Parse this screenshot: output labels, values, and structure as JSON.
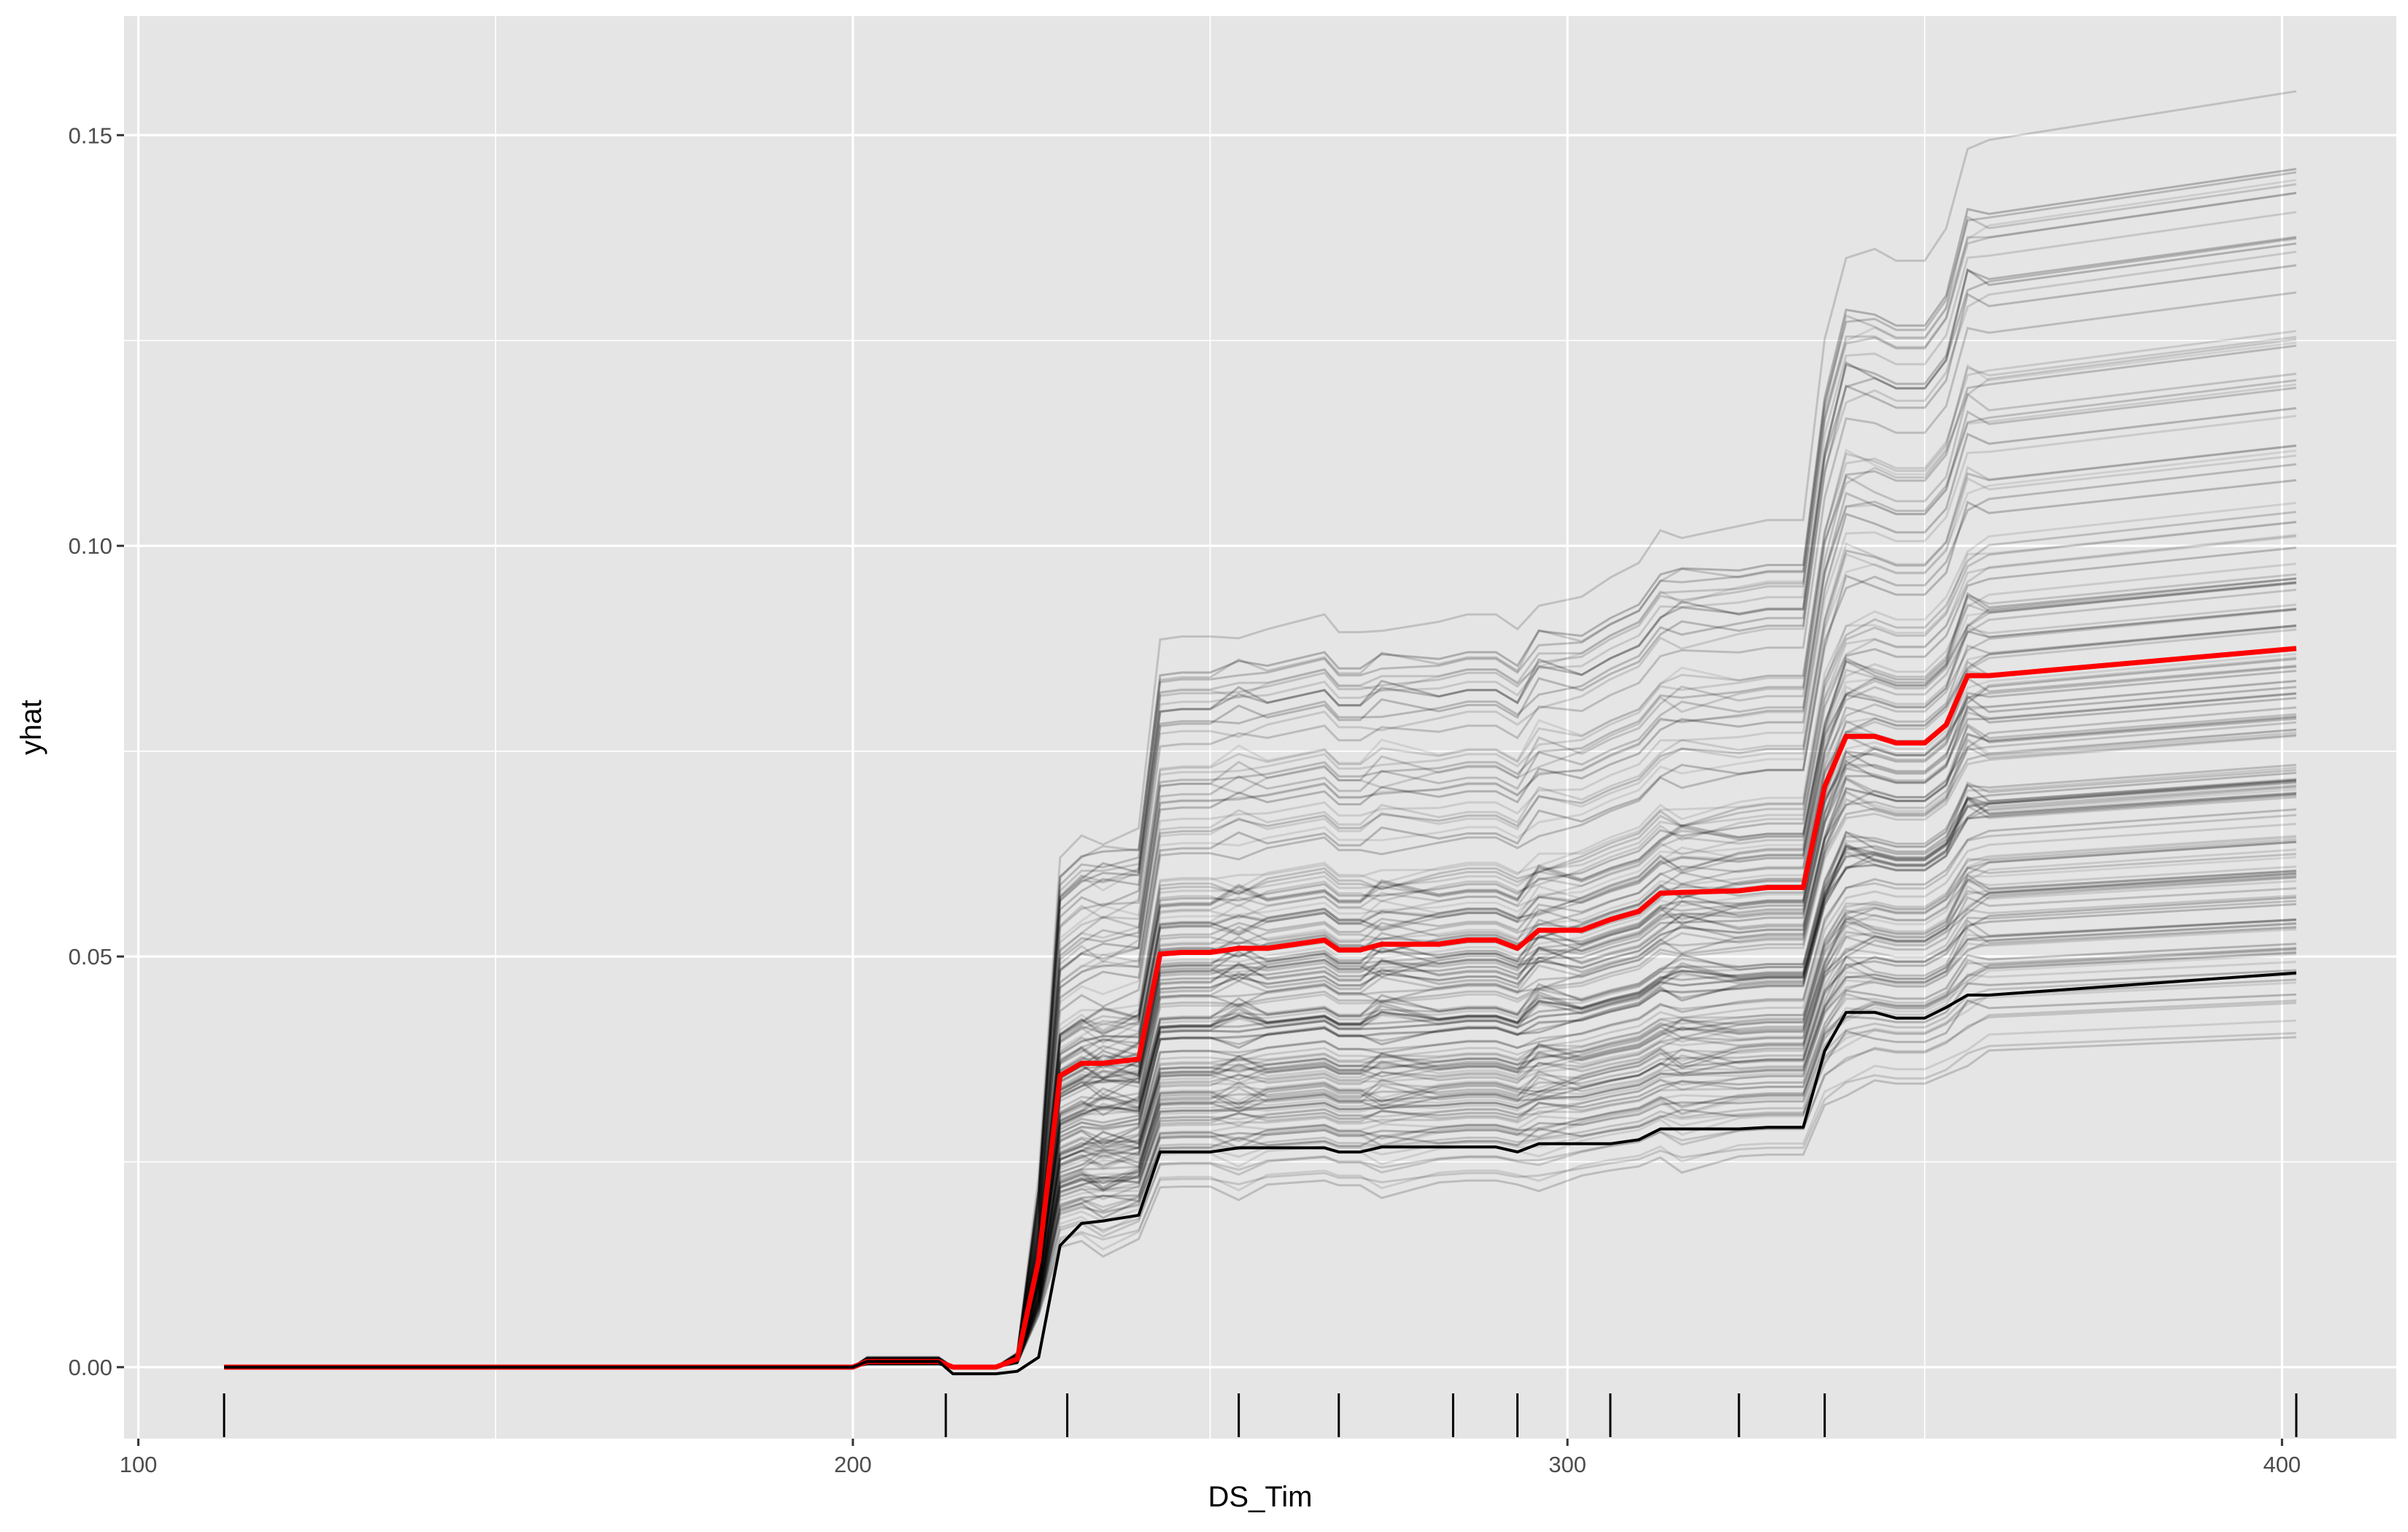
{
  "chart_data": {
    "type": "line",
    "title": "",
    "xlabel": "DS_Tim",
    "ylabel": "yhat",
    "xlim": [
      98,
      416
    ],
    "ylim": [
      -0.0087,
      0.1645
    ],
    "x_ticks": [
      100,
      200,
      300,
      400
    ],
    "x_tick_labels": [
      "100",
      "200",
      "300",
      "400"
    ],
    "y_ticks": [
      0.0,
      0.05,
      0.1,
      0.15
    ],
    "y_tick_labels": [
      "0.00",
      "0.05",
      "0.10",
      "0.15"
    ],
    "grid": true,
    "legend": "none",
    "colors": {
      "panel": "#e5e5e5",
      "grid": "#ffffff",
      "ice_lines": "#000000",
      "pd_line": "#ff0000"
    },
    "rug_x": [
      112,
      213,
      230,
      254,
      268,
      284,
      293,
      306,
      324,
      336,
      402
    ],
    "x": [
      112,
      200,
      202,
      212,
      214,
      220,
      223,
      226,
      229,
      232,
      235,
      240,
      243,
      246,
      250,
      254,
      258,
      266,
      268,
      271,
      274,
      282,
      286,
      290,
      293,
      296,
      302,
      306,
      310,
      313,
      316,
      324,
      328,
      333,
      336,
      339,
      343,
      346,
      350,
      353,
      356,
      359,
      402
    ],
    "profile_base": [
      0,
      0,
      0.0007,
      0.0007,
      0,
      0,
      0.001,
      0.013,
      0.0355,
      0.037,
      0.037,
      0.0375,
      0.0503,
      0.0505,
      0.0505,
      0.051,
      0.051,
      0.052,
      0.0508,
      0.0508,
      0.0515,
      0.0515,
      0.052,
      0.052,
      0.051,
      0.0532,
      0.0532,
      0.0545,
      0.0555,
      0.0577,
      0.0578,
      0.058,
      0.0584,
      0.0584,
      0.0707,
      0.0768,
      0.0768,
      0.076,
      0.076,
      0.0782,
      0.0842,
      0.0842,
      0.0875
    ],
    "series": [
      {
        "name": "",
        "role": "partial-dependence",
        "values": [
          0,
          0,
          0.0007,
          0.0007,
          0,
          0,
          0.001,
          0.013,
          0.0355,
          0.037,
          0.037,
          0.0375,
          0.0503,
          0.0505,
          0.0505,
          0.051,
          0.051,
          0.052,
          0.0508,
          0.0508,
          0.0515,
          0.0515,
          0.052,
          0.052,
          0.051,
          0.0532,
          0.0532,
          0.0545,
          0.0555,
          0.0577,
          0.0578,
          0.058,
          0.0584,
          0.0584,
          0.0707,
          0.0768,
          0.0768,
          0.076,
          0.076,
          0.0782,
          0.0842,
          0.0842,
          0.0875
        ]
      },
      {
        "name": "",
        "role": "highlighted-observation",
        "values": [
          0,
          0,
          0.0007,
          0.0007,
          -0.0008,
          -0.0008,
          -0.0005,
          0.0012,
          0.0148,
          0.0175,
          0.0178,
          0.0185,
          0.0262,
          0.0262,
          0.0262,
          0.0267,
          0.0267,
          0.0267,
          0.0262,
          0.0262,
          0.0268,
          0.0268,
          0.0268,
          0.0268,
          0.0262,
          0.0272,
          0.0272,
          0.0272,
          0.0277,
          0.029,
          0.029,
          0.029,
          0.0292,
          0.0292,
          0.0385,
          0.0432,
          0.0432,
          0.0425,
          0.0425,
          0.0438,
          0.0453,
          0.0453,
          0.048
        ]
      }
    ],
    "ice_curves": {
      "count": 150,
      "final_values": [
        0.157,
        0.147,
        0.146,
        0.145,
        0.144,
        0.143,
        0.142,
        0.141,
        0.139,
        0.138,
        0.136,
        0.134,
        0.132,
        0.13,
        0.128,
        0.127,
        0.125,
        0.124,
        0.122,
        0.121,
        0.12,
        0.118,
        0.117,
        0.116,
        0.115,
        0.113,
        0.112,
        0.111,
        0.11,
        0.109,
        0.108,
        0.107,
        0.106,
        0.105,
        0.104,
        0.103,
        0.102,
        0.101,
        0.1,
        0.099,
        0.098,
        0.097,
        0.096,
        0.095,
        0.094,
        0.093,
        0.092,
        0.091,
        0.09,
        0.089,
        0.088,
        0.087,
        0.086,
        0.085,
        0.084,
        0.083,
        0.082,
        0.081,
        0.08,
        0.079,
        0.078,
        0.077,
        0.076,
        0.075,
        0.074,
        0.073,
        0.072,
        0.071,
        0.07,
        0.069,
        0.068,
        0.067,
        0.066,
        0.065,
        0.064,
        0.063,
        0.062,
        0.061,
        0.06,
        0.059,
        0.058,
        0.057,
        0.056,
        0.055,
        0.054,
        0.053,
        0.052,
        0.051,
        0.05,
        0.049,
        0.048,
        0.047,
        0.046,
        0.045,
        0.044,
        0.043,
        0.042
      ]
    }
  }
}
